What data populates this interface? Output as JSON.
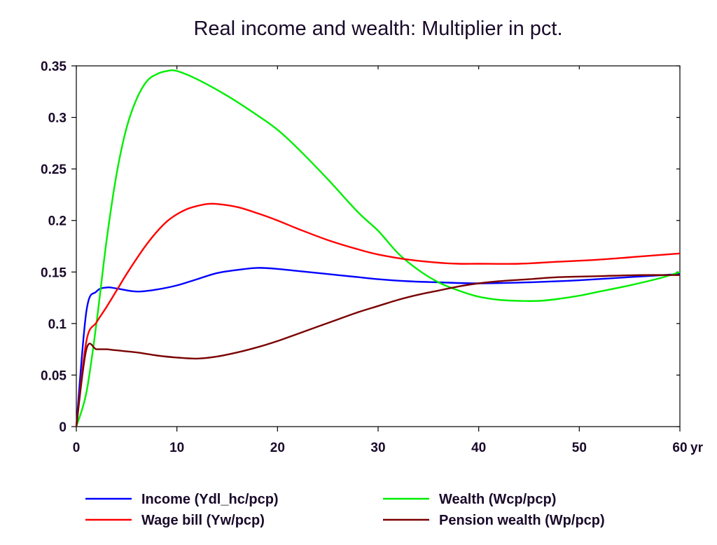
{
  "chart_data": {
    "type": "line",
    "title": "Real income and wealth: Multiplier in pct.",
    "xlabel": "",
    "ylabel": "",
    "x_unit_label": "yr",
    "xlim": [
      0,
      60
    ],
    "ylim": [
      0,
      0.35
    ],
    "x_ticks": [
      "0",
      "10",
      "20",
      "30",
      "40",
      "50",
      "60"
    ],
    "y_ticks": [
      "0",
      "0.05",
      "0.1",
      "0.15",
      "0.2",
      "0.25",
      "0.3",
      "0.35"
    ],
    "x_tick_values": [
      0,
      10,
      20,
      30,
      40,
      50,
      60
    ],
    "y_tick_values": [
      0,
      0.05,
      0.1,
      0.15,
      0.2,
      0.25,
      0.3,
      0.35
    ],
    "grid": false,
    "legend_position": "bottom",
    "series": [
      {
        "name": "Income (Ydl_hc/pcp)",
        "color": "#0000ff",
        "points": [
          [
            0,
            0
          ],
          [
            1,
            0.112
          ],
          [
            2,
            0.131
          ],
          [
            3,
            0.135
          ],
          [
            4,
            0.134
          ],
          [
            6,
            0.131
          ],
          [
            8,
            0.133
          ],
          [
            10,
            0.137
          ],
          [
            12,
            0.143
          ],
          [
            14,
            0.149
          ],
          [
            16,
            0.152
          ],
          [
            18,
            0.154
          ],
          [
            20,
            0.153
          ],
          [
            22,
            0.151
          ],
          [
            25,
            0.148
          ],
          [
            28,
            0.145
          ],
          [
            30,
            0.143
          ],
          [
            33,
            0.141
          ],
          [
            36,
            0.14
          ],
          [
            40,
            0.139
          ],
          [
            45,
            0.14
          ],
          [
            50,
            0.142
          ],
          [
            55,
            0.145
          ],
          [
            60,
            0.148
          ]
        ]
      },
      {
        "name": "Wealth (Wcp/pcp)",
        "color": "#00ee00",
        "points": [
          [
            0,
            0
          ],
          [
            1,
            0.033
          ],
          [
            2,
            0.1
          ],
          [
            3,
            0.18
          ],
          [
            4,
            0.245
          ],
          [
            5,
            0.29
          ],
          [
            6,
            0.318
          ],
          [
            7,
            0.335
          ],
          [
            8,
            0.342
          ],
          [
            9,
            0.345
          ],
          [
            10,
            0.345
          ],
          [
            12,
            0.337
          ],
          [
            15,
            0.321
          ],
          [
            18,
            0.302
          ],
          [
            20,
            0.288
          ],
          [
            22,
            0.27
          ],
          [
            25,
            0.24
          ],
          [
            28,
            0.208
          ],
          [
            30,
            0.19
          ],
          [
            32,
            0.168
          ],
          [
            34,
            0.152
          ],
          [
            36,
            0.14
          ],
          [
            38,
            0.132
          ],
          [
            40,
            0.126
          ],
          [
            42,
            0.123
          ],
          [
            44,
            0.122
          ],
          [
            46,
            0.122
          ],
          [
            48,
            0.124
          ],
          [
            50,
            0.127
          ],
          [
            52,
            0.131
          ],
          [
            55,
            0.137
          ],
          [
            58,
            0.144
          ],
          [
            60,
            0.15
          ]
        ]
      },
      {
        "name": "Wage bill (Yw/pcp)",
        "color": "#ff0000",
        "points": [
          [
            0,
            0
          ],
          [
            1,
            0.083
          ],
          [
            2,
            0.101
          ],
          [
            3,
            0.116
          ],
          [
            4,
            0.132
          ],
          [
            5,
            0.148
          ],
          [
            6,
            0.163
          ],
          [
            7,
            0.177
          ],
          [
            8,
            0.189
          ],
          [
            9,
            0.199
          ],
          [
            10,
            0.206
          ],
          [
            11,
            0.211
          ],
          [
            12,
            0.214
          ],
          [
            13,
            0.216
          ],
          [
            14,
            0.216
          ],
          [
            16,
            0.213
          ],
          [
            18,
            0.207
          ],
          [
            20,
            0.2
          ],
          [
            22,
            0.192
          ],
          [
            25,
            0.181
          ],
          [
            28,
            0.172
          ],
          [
            30,
            0.167
          ],
          [
            33,
            0.162
          ],
          [
            36,
            0.159
          ],
          [
            38,
            0.158
          ],
          [
            40,
            0.158
          ],
          [
            44,
            0.158
          ],
          [
            48,
            0.16
          ],
          [
            52,
            0.162
          ],
          [
            56,
            0.165
          ],
          [
            60,
            0.168
          ]
        ]
      },
      {
        "name": "Pension wealth (Wp/pcp)",
        "color": "#7a0000",
        "points": [
          [
            0,
            0
          ],
          [
            1,
            0.075
          ],
          [
            2,
            0.075
          ],
          [
            3,
            0.075
          ],
          [
            4,
            0.074
          ],
          [
            6,
            0.072
          ],
          [
            8,
            0.069
          ],
          [
            10,
            0.067
          ],
          [
            12,
            0.066
          ],
          [
            14,
            0.068
          ],
          [
            16,
            0.072
          ],
          [
            18,
            0.077
          ],
          [
            20,
            0.083
          ],
          [
            22,
            0.09
          ],
          [
            24,
            0.097
          ],
          [
            26,
            0.104
          ],
          [
            28,
            0.111
          ],
          [
            30,
            0.117
          ],
          [
            32,
            0.123
          ],
          [
            34,
            0.128
          ],
          [
            36,
            0.132
          ],
          [
            38,
            0.136
          ],
          [
            40,
            0.139
          ],
          [
            42,
            0.141
          ],
          [
            45,
            0.143
          ],
          [
            48,
            0.145
          ],
          [
            52,
            0.146
          ],
          [
            56,
            0.147
          ],
          [
            60,
            0.147
          ]
        ]
      }
    ]
  }
}
